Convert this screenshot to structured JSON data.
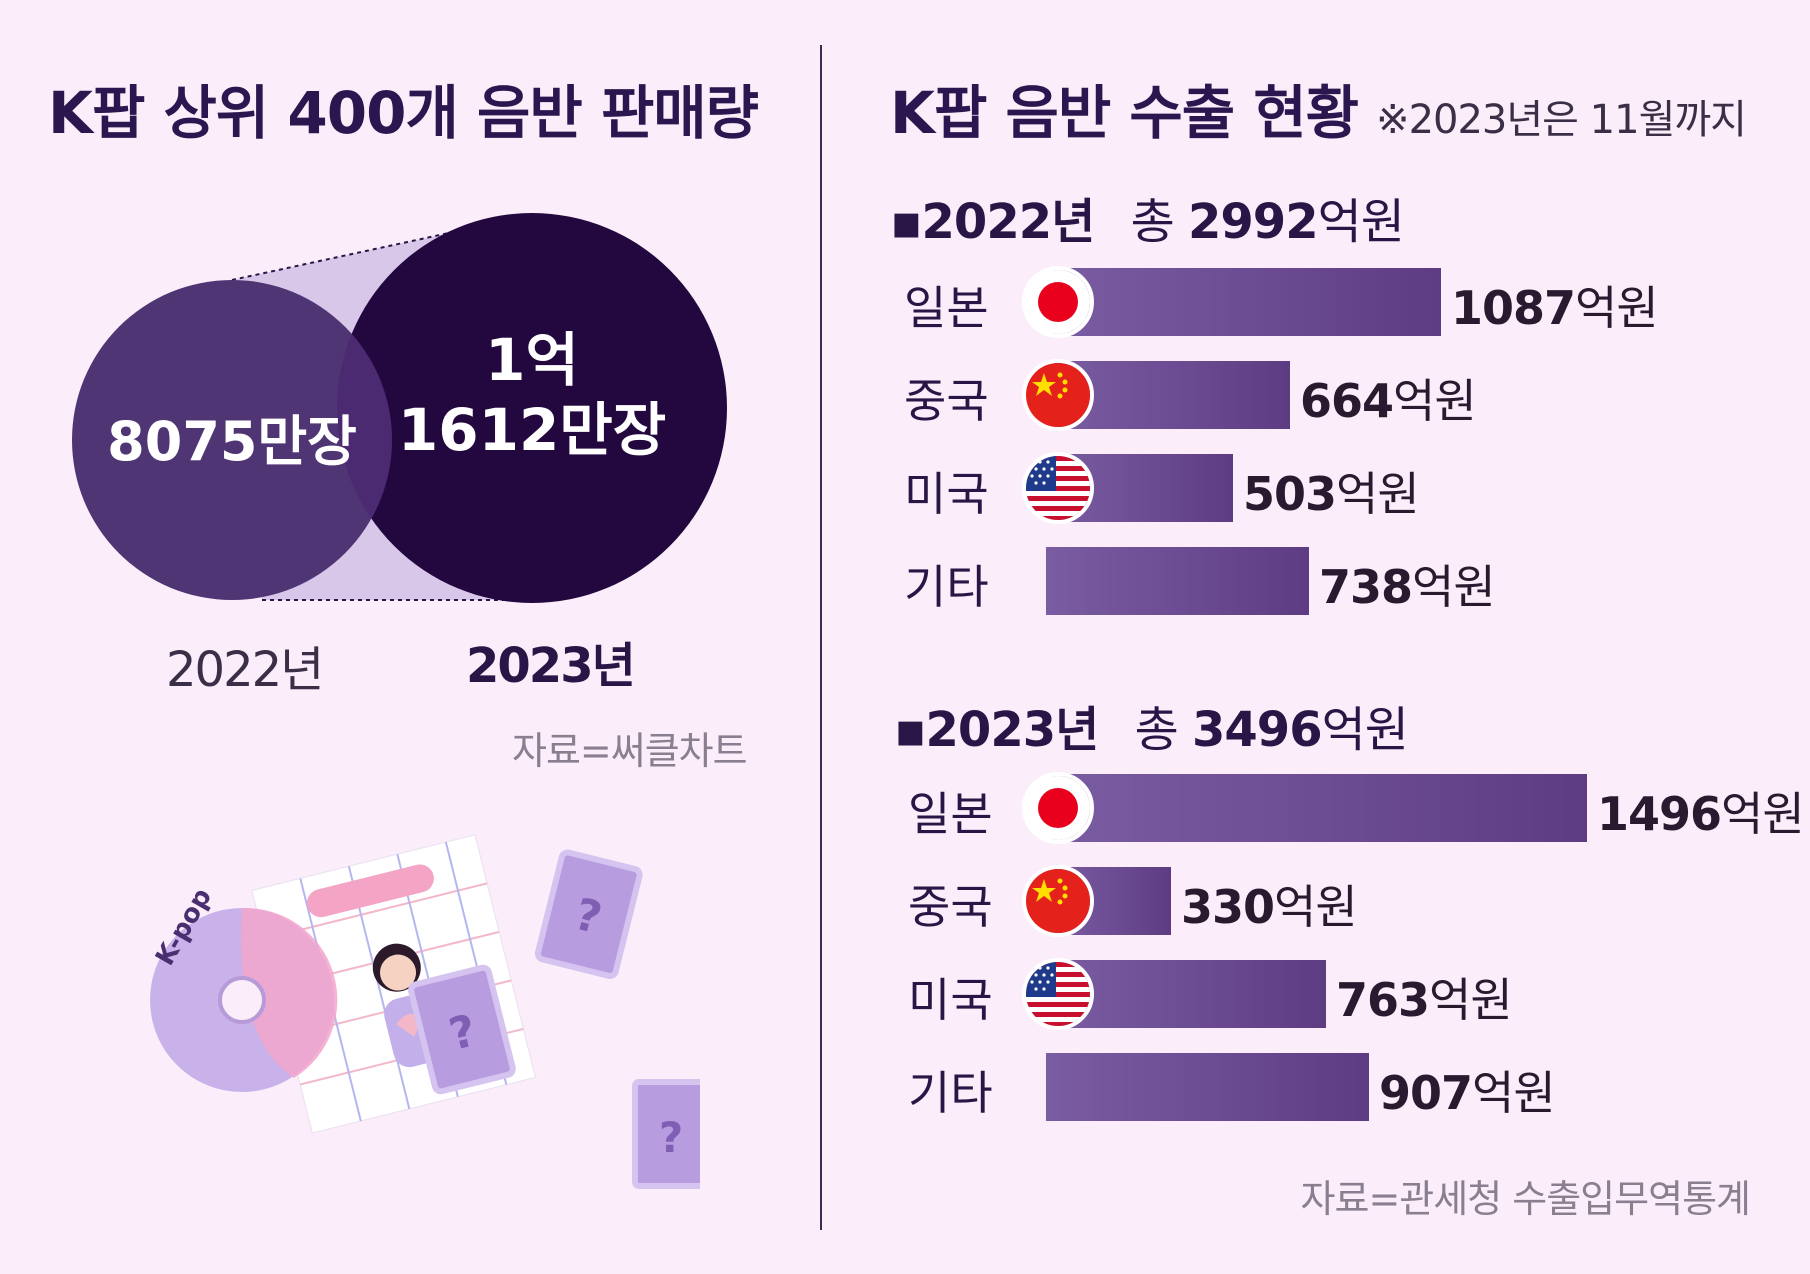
{
  "left": {
    "title": "K팝 상위 400개 음반 판매량",
    "source": "자료=써클차트",
    "years": [
      "2022년",
      "2023년"
    ],
    "circle_2022": "8075만장",
    "circle_2023_line1": "1억",
    "circle_2023_line2": "1612만장"
  },
  "right": {
    "title": "K팝 음반 수출 현황",
    "note": "※2023년은 11월까지",
    "source": "자료=관세청 수출입무역통계",
    "unit": "억원",
    "sections": [
      {
        "year": "▪2022년",
        "total_prefix": "총",
        "total": "2992",
        "total_unit": "억원"
      },
      {
        "year": "▪2023년",
        "total_prefix": "총",
        "total": "3496",
        "total_unit": "억원"
      }
    ],
    "countries": [
      "일본",
      "중국",
      "미국",
      "기타"
    ]
  },
  "chart_data": [
    {
      "type": "bubble",
      "title": "K팝 상위 400개 음반 판매량",
      "categories": [
        "2022년",
        "2023년"
      ],
      "values": [
        80750000,
        116120000
      ],
      "labels": [
        "8075만장",
        "1억 1612만장"
      ]
    },
    {
      "type": "bar",
      "title": "K팝 음반 수출 현황",
      "note": "※2023년은 11월까지",
      "categories": [
        "일본",
        "중국",
        "미국",
        "기타"
      ],
      "series": [
        {
          "name": "2022년",
          "total": 2992,
          "values": [
            1087,
            664,
            503,
            738
          ]
        },
        {
          "name": "2023년",
          "total": 3496,
          "values": [
            1496,
            330,
            763,
            907
          ]
        }
      ],
      "unit": "억원"
    }
  ],
  "colors": {
    "background": "#fbeefa",
    "bubble_2022": "#4f3574",
    "bubble_2023": "#22083f",
    "bar": "#6a4a94",
    "title": "#2c1650"
  },
  "icons": [
    "japan-flag-icon",
    "china-flag-icon",
    "usa-flag-icon",
    "kpop-album-illustration"
  ]
}
